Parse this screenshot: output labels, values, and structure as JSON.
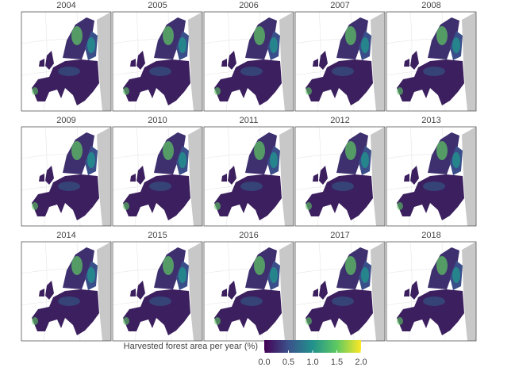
{
  "panels": [
    {
      "title": "2004"
    },
    {
      "title": "2005"
    },
    {
      "title": "2006"
    },
    {
      "title": "2007"
    },
    {
      "title": "2008"
    },
    {
      "title": "2009"
    },
    {
      "title": "2010"
    },
    {
      "title": "2011"
    },
    {
      "title": "2012"
    },
    {
      "title": "2013"
    },
    {
      "title": "2014"
    },
    {
      "title": "2015"
    },
    {
      "title": "2016"
    },
    {
      "title": "2017"
    },
    {
      "title": "2018"
    }
  ],
  "legend": {
    "title": "Harvested forest area per year (%)",
    "lim": [
      0,
      2
    ],
    "ticks": [
      {
        "value": 0,
        "label": "0.0"
      },
      {
        "value": 0.5,
        "label": "0.5"
      },
      {
        "value": 1,
        "label": "1.0"
      },
      {
        "value": 1.5,
        "label": "1.5"
      },
      {
        "value": 2,
        "label": "2.0"
      }
    ],
    "colors": [
      "#440154",
      "#3b528b",
      "#21918c",
      "#5ec962",
      "#fde725"
    ]
  }
}
